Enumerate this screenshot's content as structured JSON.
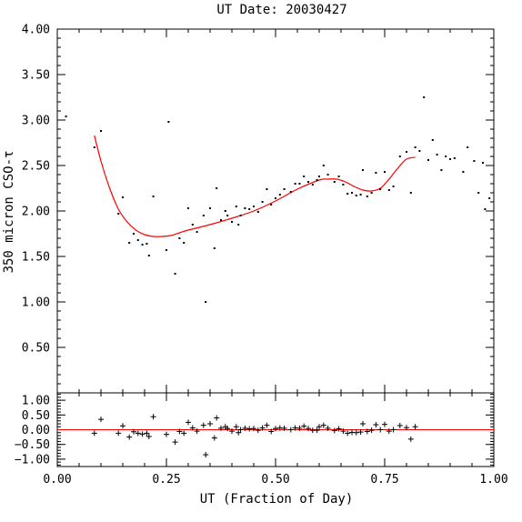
{
  "chart_data": [
    {
      "type": "scatter",
      "title": "UT Date: 20030427",
      "ylabel": "350 micron CSO-τ",
      "xlim": [
        0.0,
        1.0
      ],
      "ylim": [
        0.0,
        4.0
      ],
      "yticks": [
        "0.50",
        "1.00",
        "1.50",
        "2.00",
        "2.50",
        "3.00",
        "3.50",
        "4.00"
      ],
      "series": [
        {
          "kind": "points",
          "color": "#000000",
          "x": [
            0.02,
            0.085,
            0.1,
            0.14,
            0.15,
            0.165,
            0.175,
            0.185,
            0.195,
            0.205,
            0.21,
            0.22,
            0.25,
            0.255,
            0.27,
            0.28,
            0.29,
            0.3,
            0.31,
            0.32,
            0.335,
            0.34,
            0.35,
            0.36,
            0.365,
            0.375,
            0.385,
            0.39,
            0.4,
            0.41,
            0.415,
            0.42,
            0.43,
            0.44,
            0.45,
            0.46,
            0.47,
            0.48,
            0.49,
            0.5,
            0.51,
            0.52,
            0.535,
            0.545,
            0.555,
            0.565,
            0.575,
            0.585,
            0.595,
            0.6,
            0.61,
            0.62,
            0.635,
            0.645,
            0.655,
            0.665,
            0.675,
            0.685,
            0.695,
            0.7,
            0.71,
            0.72,
            0.73,
            0.74,
            0.75,
            0.76,
            0.77,
            0.785,
            0.8,
            0.81,
            0.82,
            0.83,
            0.84,
            0.85,
            0.86,
            0.87,
            0.88,
            0.89,
            0.9,
            0.91,
            0.93,
            0.94,
            0.955,
            0.965,
            0.975,
            0.98,
            0.99
          ],
          "y": [
            3.04,
            2.7,
            2.88,
            1.97,
            2.15,
            1.65,
            1.75,
            1.68,
            1.63,
            1.64,
            1.51,
            2.16,
            1.57,
            2.98,
            1.31,
            1.7,
            1.65,
            2.03,
            1.85,
            1.77,
            1.95,
            1.0,
            2.03,
            1.59,
            2.25,
            1.9,
            2.0,
            1.95,
            1.88,
            2.05,
            1.85,
            1.95,
            2.03,
            2.02,
            2.05,
            1.99,
            2.1,
            2.24,
            2.07,
            2.14,
            2.18,
            2.24,
            2.21,
            2.3,
            2.3,
            2.38,
            2.32,
            2.29,
            2.34,
            2.38,
            2.5,
            2.4,
            2.32,
            2.38,
            2.29,
            2.19,
            2.2,
            2.17,
            2.18,
            2.45,
            2.16,
            2.2,
            2.42,
            2.24,
            2.43,
            2.23,
            2.27,
            2.6,
            2.65,
            2.2,
            2.7,
            2.66,
            3.25,
            2.56,
            2.78,
            2.62,
            2.45,
            2.6,
            2.57,
            2.58,
            2.43,
            2.7,
            2.55,
            2.2,
            2.53,
            2.02,
            2.14
          ]
        },
        {
          "kind": "fit",
          "color": "#ff0000",
          "x": [
            0.085,
            0.1,
            0.12,
            0.14,
            0.16,
            0.18,
            0.2,
            0.22,
            0.24,
            0.26,
            0.28,
            0.3,
            0.35,
            0.4,
            0.45,
            0.5,
            0.55,
            0.6,
            0.62,
            0.64,
            0.66,
            0.68,
            0.7,
            0.72,
            0.74,
            0.76,
            0.78,
            0.8,
            0.82
          ],
          "y": [
            2.83,
            2.55,
            2.25,
            2.02,
            1.88,
            1.79,
            1.74,
            1.72,
            1.72,
            1.73,
            1.76,
            1.79,
            1.85,
            1.92,
            2.0,
            2.11,
            2.24,
            2.34,
            2.35,
            2.35,
            2.32,
            2.27,
            2.23,
            2.22,
            2.25,
            2.35,
            2.47,
            2.57,
            2.59
          ]
        }
      ]
    },
    {
      "type": "scatter",
      "xlabel": "UT (Fraction of Day)",
      "xlim": [
        0.0,
        1.0
      ],
      "ylim": [
        -1.25,
        1.25
      ],
      "xticks": [
        "0.00",
        "0.25",
        "0.50",
        "0.75",
        "1.00"
      ],
      "yticks": [
        "1.00",
        "0.50",
        "0.00",
        "−0.50",
        "−1.00"
      ],
      "zero_line_color": "#ff0000",
      "series": [
        {
          "kind": "residuals",
          "x": [
            0.085,
            0.1,
            0.14,
            0.15,
            0.165,
            0.175,
            0.185,
            0.195,
            0.205,
            0.21,
            0.22,
            0.25,
            0.27,
            0.28,
            0.29,
            0.3,
            0.31,
            0.32,
            0.335,
            0.34,
            0.35,
            0.36,
            0.365,
            0.375,
            0.385,
            0.39,
            0.4,
            0.41,
            0.415,
            0.42,
            0.43,
            0.44,
            0.45,
            0.46,
            0.47,
            0.48,
            0.49,
            0.5,
            0.51,
            0.52,
            0.535,
            0.545,
            0.555,
            0.565,
            0.575,
            0.585,
            0.595,
            0.6,
            0.61,
            0.62,
            0.635,
            0.645,
            0.655,
            0.665,
            0.675,
            0.685,
            0.695,
            0.7,
            0.71,
            0.72,
            0.73,
            0.74,
            0.75,
            0.76,
            0.77,
            0.785,
            0.8,
            0.81,
            0.82
          ],
          "y": [
            -0.12,
            0.35,
            -0.12,
            0.13,
            -0.25,
            -0.07,
            -0.12,
            -0.15,
            -0.12,
            -0.23,
            0.44,
            -0.16,
            -0.42,
            -0.06,
            -0.12,
            0.25,
            0.06,
            -0.05,
            0.15,
            -0.85,
            0.2,
            -0.28,
            0.4,
            0.05,
            0.1,
            0.04,
            -0.05,
            0.1,
            -0.1,
            0.0,
            0.05,
            0.03,
            0.04,
            -0.02,
            0.06,
            0.15,
            -0.06,
            0.04,
            0.06,
            0.05,
            0.0,
            0.06,
            0.05,
            0.12,
            0.04,
            -0.02,
            -0.02,
            0.1,
            0.15,
            0.05,
            -0.03,
            0.03,
            -0.05,
            -0.12,
            -0.09,
            -0.1,
            -0.08,
            0.2,
            -0.06,
            -0.02,
            0.17,
            0.0,
            0.18,
            -0.05,
            0.0,
            0.14,
            0.07,
            -0.32,
            0.1
          ]
        }
      ]
    }
  ]
}
